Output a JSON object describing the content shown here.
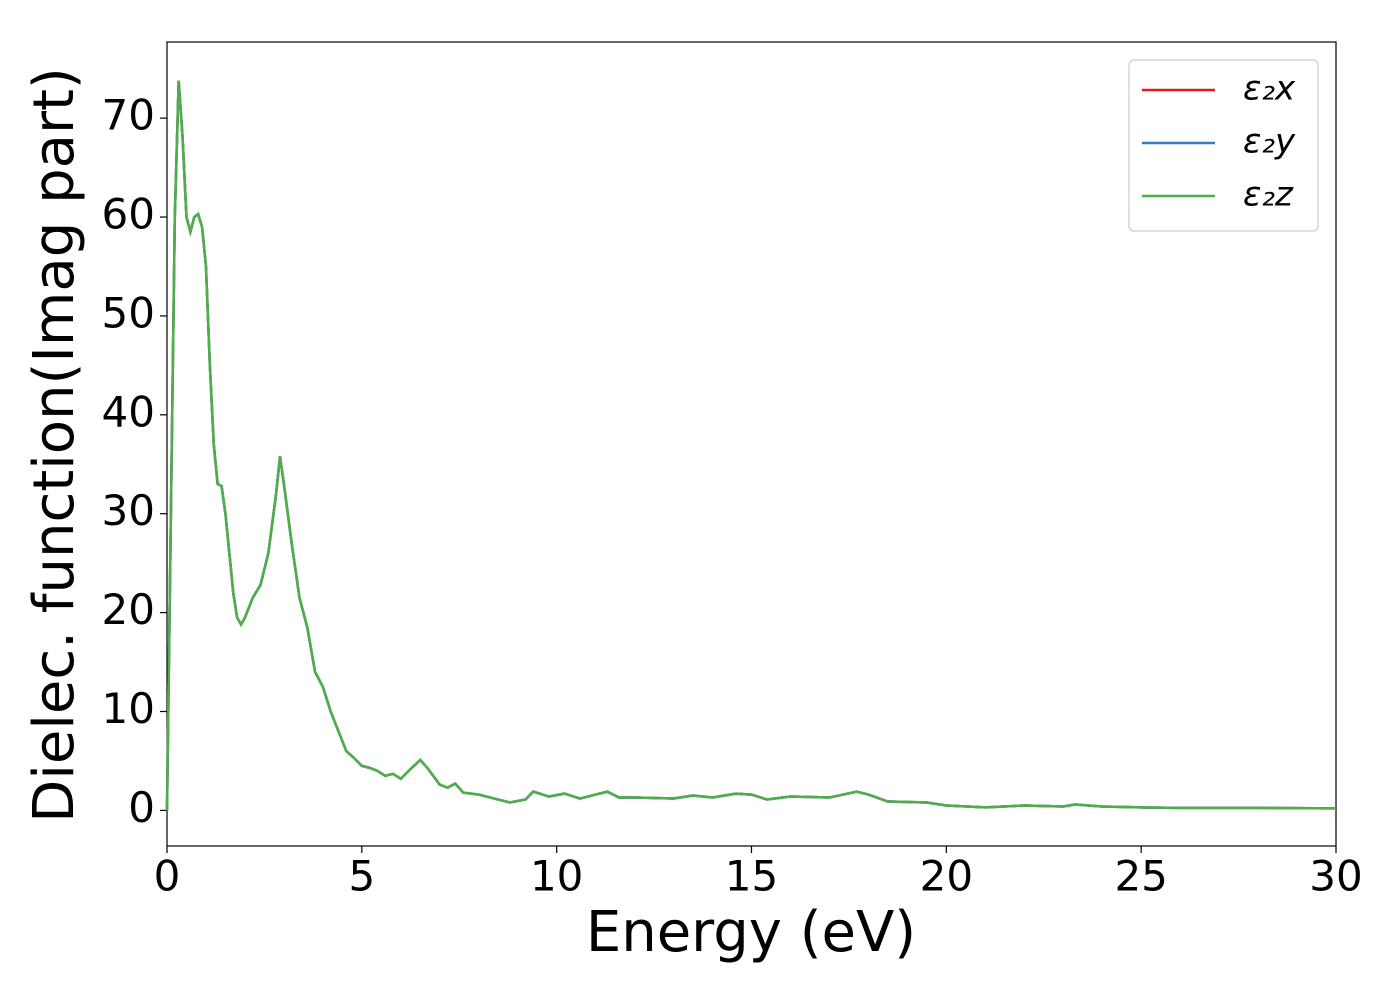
{
  "chart_data": {
    "type": "line",
    "xlabel": "Energy (eV)",
    "ylabel": "Dielec. function(Imag part)",
    "x": [
      0,
      0.1,
      0.2,
      0.3,
      0.4,
      0.5,
      0.6,
      0.7,
      0.8,
      0.9,
      1.0,
      1.1,
      1.2,
      1.3,
      1.4,
      1.5,
      1.6,
      1.7,
      1.8,
      1.9,
      2.0,
      2.2,
      2.4,
      2.6,
      2.8,
      2.9,
      3.0,
      3.2,
      3.4,
      3.6,
      3.8,
      4.0,
      4.2,
      4.4,
      4.6,
      4.8,
      5.0,
      5.2,
      5.4,
      5.6,
      5.8,
      6.0,
      6.2,
      6.5,
      6.7,
      7.0,
      7.2,
      7.4,
      7.6,
      8.0,
      8.4,
      8.8,
      9.2,
      9.4,
      9.8,
      10.2,
      10.6,
      11.0,
      11.3,
      11.6,
      12.0,
      13.0,
      13.5,
      14.0,
      14.6,
      15.0,
      15.4,
      16.0,
      17.0,
      17.7,
      18.0,
      18.5,
      19.5,
      20.0,
      21.0,
      22.0,
      23.0,
      23.3,
      24.0,
      25.0,
      26.0,
      28.0,
      30.0
    ],
    "series": [
      {
        "name": "ε₂x",
        "color": "#e41a1c",
        "values": [
          0,
          30,
          60,
          73.8,
          68,
          60,
          58.5,
          60,
          60.3,
          59,
          55,
          45,
          37,
          33,
          32.8,
          30,
          26,
          22,
          19.5,
          18.8,
          19.5,
          21.5,
          22.8,
          26,
          32,
          35.8,
          33,
          27,
          21.5,
          18.5,
          14,
          12.5,
          10,
          8,
          6,
          5.3,
          4.5,
          4.3,
          4.0,
          3.5,
          3.7,
          3.2,
          4.0,
          5.1,
          4.2,
          2.6,
          2.3,
          2.7,
          1.8,
          1.6,
          1.2,
          0.8,
          1.1,
          1.9,
          1.4,
          1.7,
          1.2,
          1.6,
          1.9,
          1.3,
          1.3,
          1.2,
          1.5,
          1.3,
          1.7,
          1.6,
          1.1,
          1.4,
          1.3,
          1.9,
          1.6,
          0.9,
          0.8,
          0.5,
          0.3,
          0.5,
          0.4,
          0.6,
          0.4,
          0.3,
          0.25,
          0.25,
          0.2
        ]
      },
      {
        "name": "ε₂y",
        "color": "#377eb8",
        "values": [
          0,
          30,
          60,
          73.8,
          68,
          60,
          58.5,
          60,
          60.3,
          59,
          55,
          45,
          37,
          33,
          32.8,
          30,
          26,
          22,
          19.5,
          18.8,
          19.5,
          21.5,
          22.8,
          26,
          32,
          35.8,
          33,
          27,
          21.5,
          18.5,
          14,
          12.5,
          10,
          8,
          6,
          5.3,
          4.5,
          4.3,
          4.0,
          3.5,
          3.7,
          3.2,
          4.0,
          5.1,
          4.2,
          2.6,
          2.3,
          2.7,
          1.8,
          1.6,
          1.2,
          0.8,
          1.1,
          1.9,
          1.4,
          1.7,
          1.2,
          1.6,
          1.9,
          1.3,
          1.3,
          1.2,
          1.5,
          1.3,
          1.7,
          1.6,
          1.1,
          1.4,
          1.3,
          1.9,
          1.6,
          0.9,
          0.8,
          0.5,
          0.3,
          0.5,
          0.4,
          0.6,
          0.4,
          0.3,
          0.25,
          0.25,
          0.2
        ]
      },
      {
        "name": "ε₂z",
        "color": "#4daf4a",
        "values": [
          0,
          30,
          60,
          73.8,
          68,
          60,
          58.5,
          60,
          60.3,
          59,
          55,
          45,
          37,
          33,
          32.8,
          30,
          26,
          22,
          19.5,
          18.8,
          19.5,
          21.5,
          22.8,
          26,
          32,
          35.8,
          33,
          27,
          21.5,
          18.5,
          14,
          12.5,
          10,
          8,
          6,
          5.3,
          4.5,
          4.3,
          4.0,
          3.5,
          3.7,
          3.2,
          4.0,
          5.1,
          4.2,
          2.6,
          2.3,
          2.7,
          1.8,
          1.6,
          1.2,
          0.8,
          1.1,
          1.9,
          1.4,
          1.7,
          1.2,
          1.6,
          1.9,
          1.3,
          1.3,
          1.2,
          1.5,
          1.3,
          1.7,
          1.6,
          1.1,
          1.4,
          1.3,
          1.9,
          1.6,
          0.9,
          0.8,
          0.5,
          0.3,
          0.5,
          0.4,
          0.6,
          0.4,
          0.3,
          0.25,
          0.25,
          0.2
        ]
      }
    ],
    "xlim": [
      0,
      30
    ],
    "xticks": [
      0,
      5,
      10,
      15,
      20,
      25,
      30
    ],
    "ylim": [
      -3.6,
      77.7
    ],
    "yticks": [
      0,
      10,
      20,
      30,
      40,
      50,
      60,
      70
    ],
    "grid": false,
    "legend": "upper right"
  }
}
